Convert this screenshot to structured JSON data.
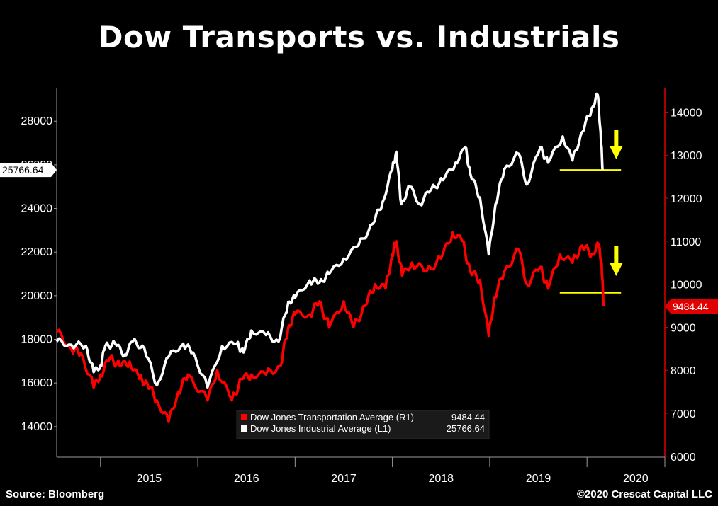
{
  "title": "Dow Transports vs. Industrials",
  "source": "Source: Bloomberg",
  "copyright": "©2020 Crescat Capital LLC",
  "colors": {
    "background": "#000000",
    "industrial": "#ffffff",
    "transport": "#ff0000",
    "annotation": "#ffff00",
    "right_axis": "#e00000",
    "axis": "#9a9a9a"
  },
  "chart_data": {
    "type": "line",
    "title": "Dow Transports vs. Industrials",
    "x_labels": [
      "2015",
      "2016",
      "2017",
      "2018",
      "2019",
      "2020"
    ],
    "x_range": [
      2014.55,
      2020.8
    ],
    "left_axis": {
      "ticks": [
        14000,
        16000,
        18000,
        20000,
        22000,
        24000,
        26000,
        28000
      ],
      "range": [
        12600,
        29500
      ]
    },
    "right_axis": {
      "ticks": [
        6000,
        7000,
        8000,
        9000,
        10000,
        11000,
        12000,
        13000,
        14000
      ],
      "range": [
        5980,
        14550
      ]
    },
    "series": [
      {
        "name": "Dow Jones Industrial Average (L1)",
        "axis": "left",
        "last_value": "25766.64",
        "points": [
          [
            2014.55,
            17900
          ],
          [
            2014.7,
            17750
          ],
          [
            2014.85,
            17700
          ],
          [
            2014.93,
            16500
          ],
          [
            2015.0,
            16800
          ],
          [
            2015.05,
            17700
          ],
          [
            2015.15,
            17800
          ],
          [
            2015.25,
            17300
          ],
          [
            2015.33,
            17900
          ],
          [
            2015.45,
            17600
          ],
          [
            2015.58,
            15900
          ],
          [
            2015.7,
            17200
          ],
          [
            2015.85,
            17800
          ],
          [
            2015.95,
            17400
          ],
          [
            2016.1,
            15800
          ],
          [
            2016.25,
            17700
          ],
          [
            2016.4,
            17800
          ],
          [
            2016.47,
            17400
          ],
          [
            2016.55,
            18400
          ],
          [
            2016.7,
            18200
          ],
          [
            2016.83,
            17900
          ],
          [
            2016.93,
            19700
          ],
          [
            2017.0,
            19900
          ],
          [
            2017.15,
            20700
          ],
          [
            2017.25,
            20600
          ],
          [
            2017.35,
            21000
          ],
          [
            2017.5,
            21700
          ],
          [
            2017.65,
            22300
          ],
          [
            2017.8,
            23300
          ],
          [
            2017.9,
            24300
          ],
          [
            2018.0,
            25800
          ],
          [
            2018.04,
            26600
          ],
          [
            2018.09,
            24200
          ],
          [
            2018.18,
            25000
          ],
          [
            2018.28,
            24200
          ],
          [
            2018.4,
            24900
          ],
          [
            2018.52,
            25300
          ],
          [
            2018.65,
            26100
          ],
          [
            2018.75,
            26800
          ],
          [
            2018.8,
            25600
          ],
          [
            2018.9,
            24500
          ],
          [
            2018.99,
            21900
          ],
          [
            2019.06,
            24200
          ],
          [
            2019.15,
            25800
          ],
          [
            2019.3,
            26500
          ],
          [
            2019.38,
            25100
          ],
          [
            2019.52,
            26800
          ],
          [
            2019.6,
            26100
          ],
          [
            2019.75,
            27300
          ],
          [
            2019.85,
            26200
          ],
          [
            2019.95,
            27500
          ],
          [
            2020.05,
            28600
          ],
          [
            2020.11,
            29200
          ],
          [
            2020.14,
            27500
          ],
          [
            2020.16,
            25766
          ]
        ]
      },
      {
        "name": "Dow Jones Transportation Average (R1)",
        "axis": "right",
        "last_value": "9484.44",
        "points": [
          [
            2014.55,
            8900
          ],
          [
            2014.7,
            8500
          ],
          [
            2014.8,
            8400
          ],
          [
            2014.93,
            7600
          ],
          [
            2015.0,
            7900
          ],
          [
            2015.1,
            8300
          ],
          [
            2015.2,
            8100
          ],
          [
            2015.3,
            8200
          ],
          [
            2015.4,
            7800
          ],
          [
            2015.48,
            7700
          ],
          [
            2015.58,
            7300
          ],
          [
            2015.7,
            6800
          ],
          [
            2015.8,
            7500
          ],
          [
            2015.9,
            7900
          ],
          [
            2016.1,
            7300
          ],
          [
            2016.2,
            8000
          ],
          [
            2016.35,
            7300
          ],
          [
            2016.45,
            7800
          ],
          [
            2016.55,
            7900
          ],
          [
            2016.7,
            7900
          ],
          [
            2016.85,
            8100
          ],
          [
            2016.93,
            9000
          ],
          [
            2017.0,
            9300
          ],
          [
            2017.15,
            9300
          ],
          [
            2017.25,
            9600
          ],
          [
            2017.35,
            9000
          ],
          [
            2017.5,
            9600
          ],
          [
            2017.6,
            9000
          ],
          [
            2017.72,
            9500
          ],
          [
            2017.82,
            10000
          ],
          [
            2017.93,
            9900
          ],
          [
            2018.0,
            10700
          ],
          [
            2018.04,
            11000
          ],
          [
            2018.1,
            10200
          ],
          [
            2018.2,
            10500
          ],
          [
            2018.35,
            10300
          ],
          [
            2018.5,
            10600
          ],
          [
            2018.62,
            11200
          ],
          [
            2018.72,
            11000
          ],
          [
            2018.8,
            10300
          ],
          [
            2018.9,
            10100
          ],
          [
            2018.99,
            8800
          ],
          [
            2019.05,
            9700
          ],
          [
            2019.15,
            10300
          ],
          [
            2019.3,
            10800
          ],
          [
            2019.38,
            10000
          ],
          [
            2019.52,
            10400
          ],
          [
            2019.6,
            9900
          ],
          [
            2019.72,
            10700
          ],
          [
            2019.85,
            10500
          ],
          [
            2019.95,
            10900
          ],
          [
            2020.05,
            10700
          ],
          [
            2020.12,
            10900
          ],
          [
            2020.15,
            10500
          ],
          [
            2020.17,
            9484
          ]
        ]
      }
    ],
    "annotations": [
      {
        "type": "support-line",
        "axis": "left",
        "value": 25766.64,
        "x_from": 2019.72,
        "x_to": 2020.35
      },
      {
        "type": "support-line",
        "axis": "right",
        "value": 9800,
        "x_from": 2019.72,
        "x_to": 2020.35
      },
      {
        "type": "down-arrow",
        "axis": "left",
        "x": 2020.3
      },
      {
        "type": "down-arrow",
        "axis": "right",
        "x": 2020.3
      }
    ],
    "legend": {
      "position": "bottom-center",
      "entries": [
        {
          "label": "Dow Jones Transportation Average (R1)",
          "value": "9484.44",
          "color": "#ff0000"
        },
        {
          "label": "Dow Jones Industrial Average (L1)",
          "value": "25766.64",
          "color": "#ffffff"
        }
      ]
    }
  }
}
